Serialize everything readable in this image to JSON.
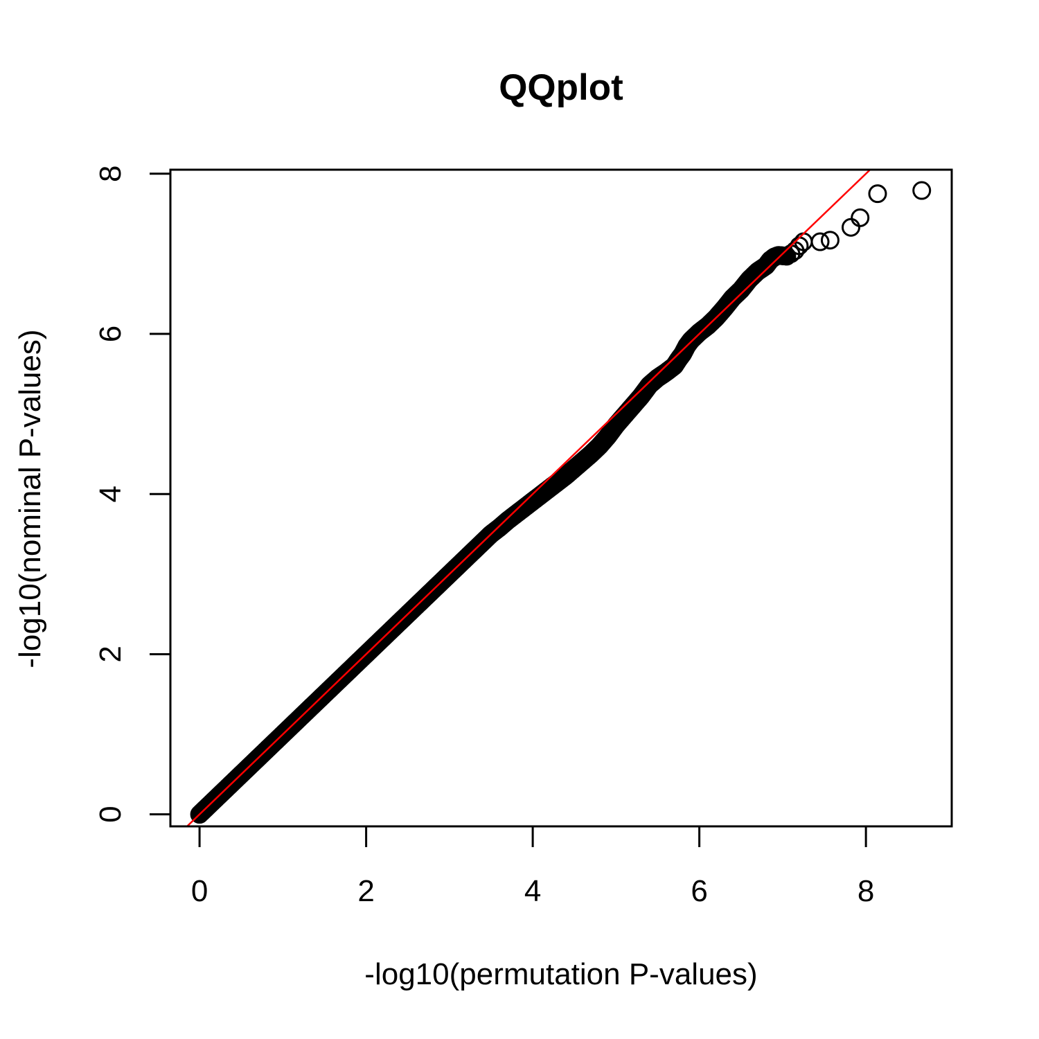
{
  "chart_data": {
    "type": "scatter",
    "title": "QQplot",
    "xlabel": "-log10(permutation P-values)",
    "ylabel": "-log10(nominal P-values)",
    "xlim": [
      -0.35,
      9.03
    ],
    "ylim": [
      -0.15,
      8.05
    ],
    "x_ticks": [
      0,
      2,
      4,
      6,
      8
    ],
    "y_ticks": [
      0,
      2,
      4,
      6,
      8
    ],
    "x_tick_labels": [
      "0",
      "2",
      "4",
      "6",
      "8"
    ],
    "y_tick_labels": [
      "0",
      "2",
      "4",
      "6",
      "8"
    ],
    "grid": false,
    "reference_line": {
      "intercept": 0,
      "slope": 1,
      "color": "#ff0000"
    },
    "colors": {
      "points": "#000000",
      "reference": "#ff0000"
    },
    "series": [
      {
        "points": [
          [
            0.0,
            0.0
          ],
          [
            0.05,
            0.05
          ],
          [
            0.1,
            0.1
          ],
          [
            0.2,
            0.2
          ],
          [
            0.3,
            0.3
          ],
          [
            0.4,
            0.4
          ],
          [
            0.5,
            0.5
          ],
          [
            0.6,
            0.6
          ],
          [
            0.7,
            0.7
          ],
          [
            0.8,
            0.8
          ],
          [
            0.9,
            0.9
          ],
          [
            1.0,
            1.0
          ],
          [
            1.1,
            1.1
          ],
          [
            1.2,
            1.2
          ],
          [
            1.3,
            1.3
          ],
          [
            1.4,
            1.4
          ],
          [
            1.5,
            1.5
          ],
          [
            1.6,
            1.6
          ],
          [
            1.7,
            1.7
          ],
          [
            1.8,
            1.8
          ],
          [
            1.9,
            1.9
          ],
          [
            2.0,
            2.0
          ],
          [
            2.1,
            2.1
          ],
          [
            2.2,
            2.2
          ],
          [
            2.3,
            2.3
          ],
          [
            2.4,
            2.4
          ],
          [
            2.5,
            2.5
          ],
          [
            2.6,
            2.6
          ],
          [
            2.7,
            2.7
          ],
          [
            2.8,
            2.8
          ],
          [
            2.9,
            2.9
          ],
          [
            3.0,
            3.0
          ],
          [
            3.1,
            3.1
          ],
          [
            3.2,
            3.2
          ],
          [
            3.3,
            3.3
          ],
          [
            3.4,
            3.4
          ],
          [
            3.5,
            3.5
          ],
          [
            3.6,
            3.58
          ],
          [
            3.7,
            3.67
          ],
          [
            3.8,
            3.75
          ],
          [
            3.9,
            3.83
          ],
          [
            4.0,
            3.91
          ],
          [
            4.1,
            3.99
          ],
          [
            4.2,
            4.07
          ],
          [
            4.3,
            4.15
          ],
          [
            4.4,
            4.23
          ],
          [
            4.5,
            4.32
          ],
          [
            4.6,
            4.41
          ],
          [
            4.7,
            4.5
          ],
          [
            4.8,
            4.6
          ],
          [
            4.9,
            4.72
          ],
          [
            5.0,
            4.86
          ],
          [
            5.1,
            4.98
          ],
          [
            5.2,
            5.1
          ],
          [
            5.3,
            5.22
          ],
          [
            5.4,
            5.36
          ],
          [
            5.5,
            5.45
          ],
          [
            5.6,
            5.52
          ],
          [
            5.7,
            5.6
          ],
          [
            5.75,
            5.68
          ],
          [
            5.8,
            5.75
          ],
          [
            5.85,
            5.85
          ],
          [
            5.9,
            5.92
          ],
          [
            6.0,
            6.02
          ],
          [
            6.1,
            6.1
          ],
          [
            6.2,
            6.2
          ],
          [
            6.3,
            6.32
          ],
          [
            6.4,
            6.45
          ],
          [
            6.5,
            6.55
          ],
          [
            6.6,
            6.68
          ],
          [
            6.7,
            6.78
          ],
          [
            6.8,
            6.85
          ],
          [
            6.85,
            6.92
          ],
          [
            6.9,
            6.96
          ],
          [
            6.95,
            6.98
          ],
          [
            7.05,
            6.97
          ],
          [
            7.1,
            7.0
          ],
          [
            7.15,
            7.04
          ],
          [
            7.2,
            7.1
          ],
          [
            7.25,
            7.15
          ],
          [
            7.45,
            7.15
          ],
          [
            7.57,
            7.17
          ],
          [
            7.82,
            7.33
          ],
          [
            7.93,
            7.45
          ],
          [
            8.14,
            7.75
          ],
          [
            8.67,
            7.79
          ]
        ]
      }
    ]
  }
}
